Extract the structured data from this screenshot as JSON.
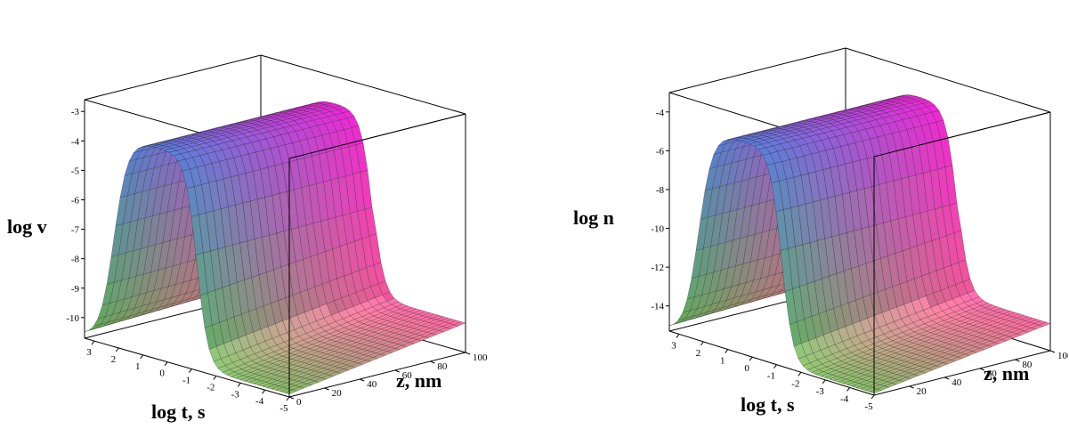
{
  "chart_data": [
    {
      "type": "surface3d",
      "z_axis_label": "log v",
      "t_axis_label": "log t, s",
      "depth_axis_label": "z, nm",
      "z_ticks": [
        "-3",
        "-4",
        "-5",
        "-6",
        "-7",
        "-8",
        "-9",
        "-10"
      ],
      "t_ticks": [
        "3",
        "2",
        "1",
        "0",
        "-1",
        "-2",
        "-3",
        "-4",
        "-5"
      ],
      "depth_ticks": [
        "0",
        "20",
        "40",
        "60",
        "80",
        "100"
      ],
      "zlim": [
        -10.7,
        -2.6
      ],
      "tlim": [
        3.4,
        -5
      ],
      "depthlim": [
        0,
        100
      ],
      "surface": {
        "baseline": -10.6,
        "peak": -3.5,
        "rise_center_log_t": 2.2,
        "fall_center_log_t": -1.2,
        "depth_slope": 0.9
      }
    },
    {
      "type": "surface3d",
      "z_axis_label": "log n",
      "t_axis_label": "log t, s",
      "depth_axis_label": "z, nm",
      "z_ticks": [
        "-4",
        "-6",
        "-8",
        "-10",
        "-12",
        "-14"
      ],
      "t_ticks": [
        "3",
        "2",
        "1",
        "0",
        "-1",
        "-2",
        "-3",
        "-4",
        "-5"
      ],
      "depth_ticks": [
        "20",
        "40",
        "60",
        "80",
        "100"
      ],
      "zlim": [
        -15.3,
        -3.0
      ],
      "tlim": [
        3.4,
        -5
      ],
      "depthlim": [
        0,
        100
      ],
      "surface": {
        "baseline": -15.2,
        "peak": -4.3,
        "rise_center_log_t": 2.2,
        "fall_center_log_t": -1.2,
        "depth_slope": 1.3
      }
    }
  ]
}
